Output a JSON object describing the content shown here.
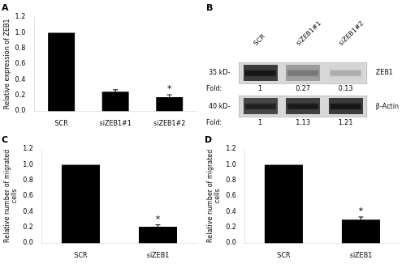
{
  "chart_data": [
    {
      "type": "bar",
      "title": "A",
      "categories": [
        "SCR",
        "siZEB1#1",
        "siZEB1#2"
      ],
      "values": [
        1.0,
        0.25,
        0.18
      ],
      "errors": [
        0.0,
        0.025,
        0.03
      ],
      "color": "#000000",
      "ylabel": "Relative expression of ZEB1",
      "ylim": [
        0,
        1.2
      ],
      "yticks": [
        {
          "value": 0,
          "label": "0.0"
        },
        0.2,
        0.4,
        0.6,
        0.8,
        {
          "value": 1.0,
          "label": "1.0"
        },
        1.2
      ],
      "annotations": [
        {
          "text": "*",
          "category": "siZEB1#2"
        }
      ],
      "grid": false
    },
    {
      "type": "heatmap",
      "title": "B",
      "categories": [
        "SCR",
        "siZEB1#1",
        "siZEB1#2"
      ],
      "y_categories": [
        "ZEB1",
        "β-Actin"
      ],
      "y_categories_left": [
        "35 kD-",
        "40 kD-"
      ],
      "cells": [
        [
          0.9,
          0.45,
          0.2
        ],
        [
          0.85,
          0.88,
          0.9
        ]
      ],
      "fold_rows": [
        {
          "label": "Fold:",
          "values": [
            1,
            0.27,
            0.13
          ]
        },
        {
          "label": "Fold:",
          "values": [
            1,
            1.13,
            1.21
          ]
        }
      ],
      "grid": false
    },
    {
      "type": "bar",
      "title": "C",
      "categories": [
        "SCR",
        "siZEB1"
      ],
      "values": [
        1.0,
        0.21
      ],
      "errors": [
        0.0,
        0.025
      ],
      "color": "#000000",
      "ylabel": "Relative number of migrated\ncells",
      "ylim": [
        0,
        1.2
      ],
      "yticks": [
        {
          "value": 0,
          "label": "0.0"
        },
        0.2,
        0.4,
        0.6,
        0.8,
        {
          "value": 1.0,
          "label": "1.0"
        },
        1.2
      ],
      "annotations": [
        {
          "text": "*",
          "category": "siZEB1"
        }
      ],
      "grid": false
    },
    {
      "type": "bar",
      "title": "D",
      "categories": [
        "SCR",
        "siZEB1"
      ],
      "values": [
        1.0,
        0.3
      ],
      "errors": [
        0.0,
        0.035
      ],
      "color": "#000000",
      "ylabel": "Relative number of migrated\ncells",
      "ylim": [
        0,
        1.2
      ],
      "yticks": [
        {
          "value": 0,
          "label": "0.0"
        },
        0.2,
        0.4,
        0.6,
        0.8,
        {
          "value": 1.0,
          "label": "1.0"
        },
        1.2
      ],
      "annotations": [
        {
          "text": "*",
          "category": "siZEB1"
        }
      ],
      "grid": false
    }
  ]
}
